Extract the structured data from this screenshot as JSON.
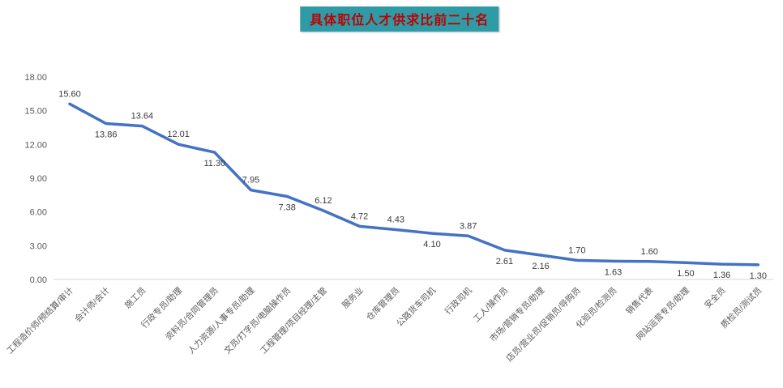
{
  "chart_data": {
    "type": "line",
    "title": "具体职位人才供求比前二十名",
    "categories": [
      "工程造价师/预结算/审计",
      "会计师/会计",
      "施工员",
      "行政专员/助理",
      "资料员/合同管理员",
      "人力资源/人事专员/助理",
      "文员/打字员/电脑操作员",
      "工程管理/项目经理/主管",
      "服务业",
      "仓库管理员",
      "公路货车司机",
      "行政司机",
      "工人/操作员",
      "市场/营销专员/助理",
      "店员/营业员/促销员/导购员",
      "化验员/检测员",
      "销售代表",
      "网站运营专员/助理",
      "安全员",
      "质检员/测试员"
    ],
    "values": [
      15.6,
      13.86,
      13.64,
      12.01,
      11.3,
      7.95,
      7.38,
      6.12,
      4.72,
      4.43,
      4.1,
      3.87,
      2.61,
      2.16,
      1.7,
      1.63,
      1.6,
      1.5,
      1.36,
      1.3
    ],
    "label_positions": [
      "above",
      "below",
      "above",
      "above",
      "below",
      "above",
      "below",
      "above",
      "above",
      "above",
      "below",
      "above",
      "below",
      "below",
      "above",
      "below",
      "above",
      "below",
      "below",
      "below"
    ],
    "ylim": [
      0,
      18
    ],
    "yticks": [
      0,
      3,
      6,
      9,
      12,
      15,
      18
    ],
    "ytick_decimals": 2,
    "grid": false,
    "legend": "none",
    "xlabel": "",
    "ylabel": "",
    "line_color": "#4472C4",
    "colors": {
      "title_bg": "#2E9BA6",
      "title_text": "#C00000",
      "axis_text": "#595959",
      "data_label": "#3A3A3A"
    }
  }
}
